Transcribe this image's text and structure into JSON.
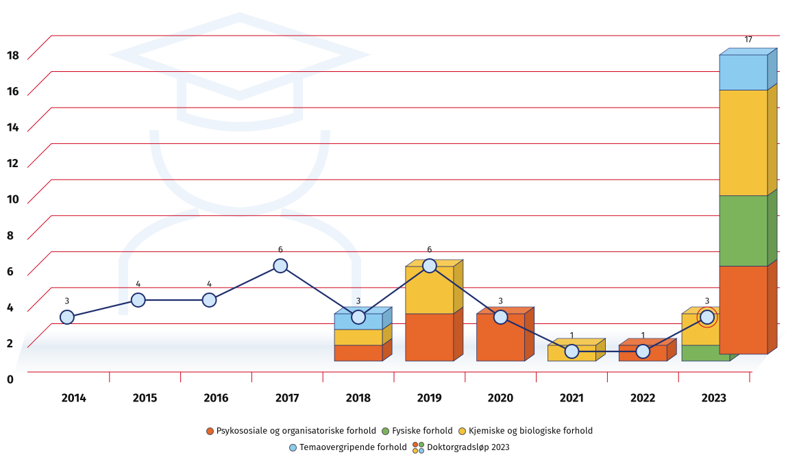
{
  "chart_data": {
    "type": "bar",
    "categories": [
      "2014",
      "2015",
      "2016",
      "2017",
      "2018",
      "2019",
      "2020",
      "2021",
      "2022",
      "2023"
    ],
    "series": [
      {
        "name": "Psykososiale og organisatoriske forhold",
        "color": "#e8672a",
        "values": [
          null,
          null,
          null,
          null,
          1,
          3,
          3,
          null,
          1,
          null
        ]
      },
      {
        "name": "Fysiske forhold",
        "color": "#7cb45c",
        "values": [
          null,
          null,
          null,
          null,
          null,
          null,
          null,
          null,
          null,
          1
        ]
      },
      {
        "name": "Kjemiske og biologiske forhold",
        "color": "#f5c33b",
        "values": [
          null,
          null,
          null,
          null,
          1,
          3,
          null,
          1,
          null,
          2
        ]
      },
      {
        "name": "Temaovergripende forhold",
        "color": "#8ccbf0",
        "values": [
          null,
          null,
          null,
          null,
          1,
          null,
          null,
          null,
          null,
          null
        ]
      }
    ],
    "line": {
      "color": "#1f2f6e",
      "values": [
        3,
        4,
        4,
        6,
        3,
        6,
        3,
        1,
        1,
        3
      ]
    },
    "total_bar": {
      "name": "Doktorgradsløp 2023",
      "values": [
        5,
        4,
        6,
        2
      ],
      "total": 17
    },
    "ylim": [
      0,
      20
    ],
    "yticks": [
      0,
      2,
      4,
      6,
      8,
      10,
      12,
      14,
      16,
      18
    ],
    "grid": true,
    "grid_color": "#d0021b",
    "highlight_category_index": 9,
    "highlight_color": "#d0021b"
  }
}
